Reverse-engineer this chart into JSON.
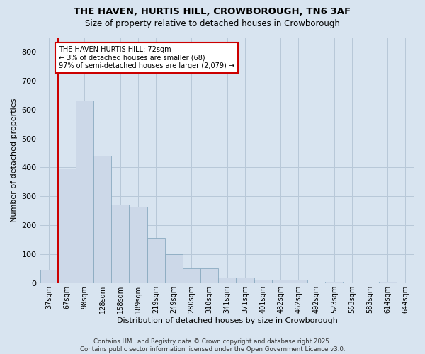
{
  "title_line1": "THE HAVEN, HURTIS HILL, CROWBOROUGH, TN6 3AF",
  "title_line2": "Size of property relative to detached houses in Crowborough",
  "xlabel": "Distribution of detached houses by size in Crowborough",
  "ylabel": "Number of detached properties",
  "categories": [
    "37sqm",
    "67sqm",
    "98sqm",
    "128sqm",
    "158sqm",
    "189sqm",
    "219sqm",
    "249sqm",
    "280sqm",
    "310sqm",
    "341sqm",
    "371sqm",
    "401sqm",
    "432sqm",
    "462sqm",
    "492sqm",
    "523sqm",
    "553sqm",
    "583sqm",
    "614sqm",
    "644sqm"
  ],
  "values": [
    45,
    395,
    630,
    440,
    270,
    265,
    155,
    100,
    52,
    52,
    20,
    18,
    12,
    12,
    12,
    0,
    5,
    0,
    0,
    5,
    0
  ],
  "bar_color": "#ccd8e8",
  "bar_edge_color": "#8aaac0",
  "annotation_text": "THE HAVEN HURTIS HILL: 72sqm\n← 3% of detached houses are smaller (68)\n97% of semi-detached houses are larger (2,079) →",
  "annotation_box_color": "#ffffff",
  "annotation_box_edge_color": "#cc0000",
  "vline_color": "#cc0000",
  "vline_x": 1,
  "grid_color": "#b8c8d8",
  "background_color": "#d8e4f0",
  "footer_text": "Contains HM Land Registry data © Crown copyright and database right 2025.\nContains public sector information licensed under the Open Government Licence v3.0.",
  "ylim": [
    0,
    850
  ],
  "yticks": [
    0,
    100,
    200,
    300,
    400,
    500,
    600,
    700,
    800
  ]
}
